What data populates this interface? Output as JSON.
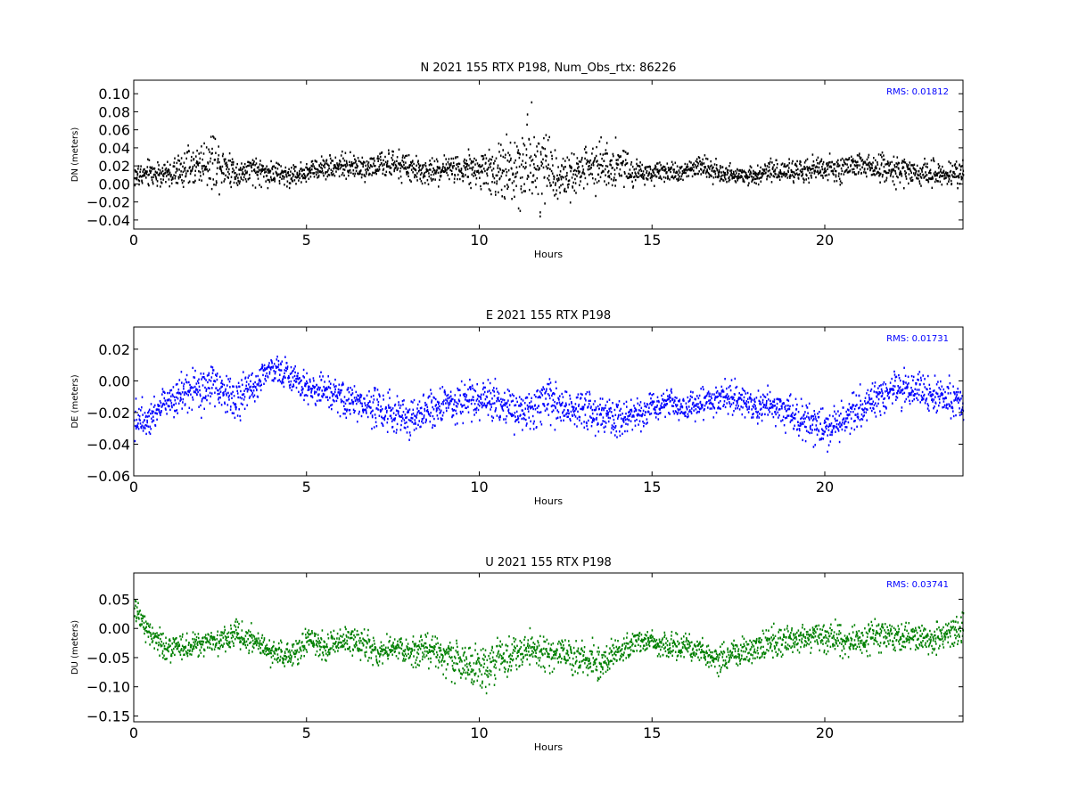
{
  "chart_data": [
    {
      "type": "scatter",
      "title": "N 2021 155 RTX  P198, Num_Obs_rtx: 86226",
      "xlabel": "Hours",
      "ylabel": "DN (meters)",
      "annotation": "RMS:  0.01812",
      "annotation_color": "#0000ff",
      "color": "#000000",
      "xlim": [
        0,
        24
      ],
      "ylim": [
        -0.05,
        0.115
      ],
      "xticks": [
        0,
        5,
        10,
        15,
        20
      ],
      "xtick_labels": [
        "0",
        "5",
        "10",
        "15",
        "20"
      ],
      "yticks": [
        -0.04,
        -0.02,
        0.0,
        0.02,
        0.04,
        0.06,
        0.08,
        0.1
      ],
      "ytick_labels": [
        "−0.04",
        "−0.02",
        "0.00",
        "0.02",
        "0.04",
        "0.06",
        "0.08",
        "0.10"
      ],
      "series": [
        {
          "x": [
            0,
            0.5,
            1,
            1.5,
            2,
            2.3,
            2.6,
            3,
            3.5,
            4,
            4.5,
            5,
            5.5,
            6,
            6.5,
            7,
            7.5,
            8,
            8.5,
            9,
            9.5,
            10,
            10.5,
            11,
            11.5,
            12,
            12.5,
            13,
            13.5,
            14,
            14.5,
            15,
            15.5,
            16,
            16.5,
            17,
            17.5,
            18,
            18.5,
            19,
            19.5,
            20,
            20.5,
            21,
            21.5,
            22,
            22.5,
            23,
            23.5,
            24
          ],
          "center": [
            0.01,
            0.013,
            0.012,
            0.018,
            0.025,
            0.028,
            0.022,
            0.013,
            0.016,
            0.013,
            0.01,
            0.015,
            0.02,
            0.022,
            0.019,
            0.021,
            0.022,
            0.018,
            0.013,
            0.018,
            0.02,
            0.017,
            0.012,
            0.02,
            0.028,
            0.018,
            0.008,
            0.016,
            0.026,
            0.022,
            0.015,
            0.012,
            0.014,
            0.017,
            0.022,
            0.012,
            0.01,
            0.012,
            0.016,
            0.014,
            0.016,
            0.018,
            0.019,
            0.021,
            0.02,
            0.017,
            0.015,
            0.013,
            0.012,
            0.012
          ],
          "spread": [
            0.02,
            0.022,
            0.02,
            0.03,
            0.038,
            0.044,
            0.036,
            0.022,
            0.024,
            0.02,
            0.018,
            0.018,
            0.018,
            0.018,
            0.02,
            0.02,
            0.022,
            0.02,
            0.02,
            0.022,
            0.024,
            0.034,
            0.048,
            0.058,
            0.075,
            0.058,
            0.032,
            0.036,
            0.044,
            0.036,
            0.022,
            0.016,
            0.014,
            0.016,
            0.022,
            0.016,
            0.014,
            0.016,
            0.018,
            0.018,
            0.02,
            0.02,
            0.02,
            0.02,
            0.022,
            0.024,
            0.02,
            0.02,
            0.02,
            0.022
          ]
        }
      ]
    },
    {
      "type": "scatter",
      "title": "E 2021 155 RTX  P198",
      "xlabel": "Hours",
      "ylabel": "DE (meters)",
      "annotation": "RMS:  0.01731",
      "annotation_color": "#0000ff",
      "color": "#0000ff",
      "xlim": [
        0,
        24
      ],
      "ylim": [
        -0.06,
        0.034
      ],
      "xticks": [
        0,
        5,
        10,
        15,
        20
      ],
      "xtick_labels": [
        "0",
        "5",
        "10",
        "15",
        "20"
      ],
      "yticks": [
        -0.06,
        -0.04,
        -0.02,
        0.0,
        0.02
      ],
      "ytick_labels": [
        "−0.06",
        "−0.04",
        "−0.02",
        "0.00",
        "0.02"
      ],
      "series": [
        {
          "x": [
            0,
            0.5,
            1,
            1.5,
            2,
            2.3,
            2.6,
            3,
            3.5,
            3.9,
            4.3,
            4.7,
            5,
            5.5,
            6,
            6.5,
            7,
            7.5,
            8,
            8.5,
            9,
            9.5,
            10,
            10.5,
            11,
            11.5,
            12,
            12.5,
            13,
            13.5,
            14,
            14.5,
            15,
            15.5,
            16,
            16.5,
            17,
            17.5,
            18,
            18.5,
            19,
            19.5,
            20,
            20.5,
            21,
            21.5,
            22,
            22.5,
            23,
            23.5,
            24
          ],
          "center": [
            -0.025,
            -0.02,
            -0.01,
            -0.008,
            -0.006,
            -0.002,
            -0.008,
            -0.01,
            -0.002,
            0.01,
            0.005,
            0.002,
            -0.004,
            -0.006,
            -0.01,
            -0.014,
            -0.016,
            -0.02,
            -0.022,
            -0.018,
            -0.014,
            -0.014,
            -0.01,
            -0.014,
            -0.018,
            -0.016,
            -0.012,
            -0.016,
            -0.018,
            -0.02,
            -0.024,
            -0.022,
            -0.016,
            -0.014,
            -0.016,
            -0.012,
            -0.01,
            -0.01,
            -0.016,
            -0.016,
            -0.02,
            -0.026,
            -0.03,
            -0.024,
            -0.018,
            -0.01,
            -0.004,
            -0.004,
            -0.006,
            -0.01,
            -0.014
          ],
          "spread": [
            0.018,
            0.016,
            0.016,
            0.018,
            0.02,
            0.022,
            0.02,
            0.018,
            0.016,
            0.016,
            0.014,
            0.012,
            0.012,
            0.014,
            0.016,
            0.016,
            0.018,
            0.018,
            0.018,
            0.018,
            0.018,
            0.018,
            0.02,
            0.02,
            0.02,
            0.02,
            0.02,
            0.018,
            0.018,
            0.018,
            0.018,
            0.016,
            0.014,
            0.012,
            0.012,
            0.014,
            0.014,
            0.014,
            0.014,
            0.014,
            0.016,
            0.018,
            0.018,
            0.018,
            0.018,
            0.018,
            0.018,
            0.016,
            0.016,
            0.016,
            0.016
          ]
        }
      ]
    },
    {
      "type": "scatter",
      "title": "U 2021 155 RTX  P198",
      "xlabel": "Hours",
      "ylabel": "DU (meters)",
      "annotation": "RMS:  0.03741",
      "annotation_color": "#0000ff",
      "color": "#008000",
      "xlim": [
        0,
        24
      ],
      "ylim": [
        -0.16,
        0.095
      ],
      "xticks": [
        0,
        5,
        10,
        15,
        20
      ],
      "xtick_labels": [
        "0",
        "5",
        "10",
        "15",
        "20"
      ],
      "yticks": [
        -0.15,
        -0.1,
        -0.05,
        0.0,
        0.05
      ],
      "ytick_labels": [
        "−0.15",
        "−0.10",
        "−0.05",
        "0.00",
        "0.05"
      ],
      "series": [
        {
          "x": [
            0,
            0.3,
            0.6,
            1,
            1.5,
            2,
            2.5,
            3,
            3.5,
            4,
            4.5,
            5,
            5.5,
            6,
            6.5,
            7,
            7.5,
            8,
            8.5,
            9,
            9.5,
            10,
            10.5,
            11,
            11.5,
            12,
            12.5,
            13,
            13.5,
            14,
            14.5,
            15,
            15.5,
            16,
            16.5,
            17,
            17.5,
            18,
            18.5,
            19,
            19.5,
            20,
            20.5,
            21,
            21.5,
            22,
            22.5,
            23,
            23.5,
            24
          ],
          "center": [
            0.03,
            0.01,
            -0.02,
            -0.03,
            -0.03,
            -0.025,
            -0.02,
            -0.01,
            -0.02,
            -0.04,
            -0.045,
            -0.02,
            -0.03,
            -0.02,
            -0.02,
            -0.04,
            -0.03,
            -0.04,
            -0.03,
            -0.045,
            -0.06,
            -0.07,
            -0.05,
            -0.04,
            -0.03,
            -0.04,
            -0.04,
            -0.05,
            -0.06,
            -0.04,
            -0.02,
            -0.02,
            -0.03,
            -0.03,
            -0.04,
            -0.05,
            -0.04,
            -0.03,
            -0.02,
            -0.02,
            -0.015,
            -0.01,
            -0.02,
            -0.02,
            -0.01,
            -0.01,
            -0.015,
            -0.02,
            -0.01,
            0.0
          ],
          "spread": [
            0.03,
            0.035,
            0.035,
            0.035,
            0.03,
            0.03,
            0.03,
            0.035,
            0.035,
            0.03,
            0.03,
            0.035,
            0.035,
            0.03,
            0.035,
            0.035,
            0.035,
            0.035,
            0.04,
            0.045,
            0.05,
            0.06,
            0.055,
            0.05,
            0.045,
            0.04,
            0.04,
            0.045,
            0.045,
            0.035,
            0.03,
            0.03,
            0.03,
            0.03,
            0.035,
            0.035,
            0.035,
            0.035,
            0.035,
            0.035,
            0.035,
            0.035,
            0.035,
            0.035,
            0.035,
            0.035,
            0.035,
            0.035,
            0.035,
            0.035
          ]
        }
      ]
    }
  ]
}
